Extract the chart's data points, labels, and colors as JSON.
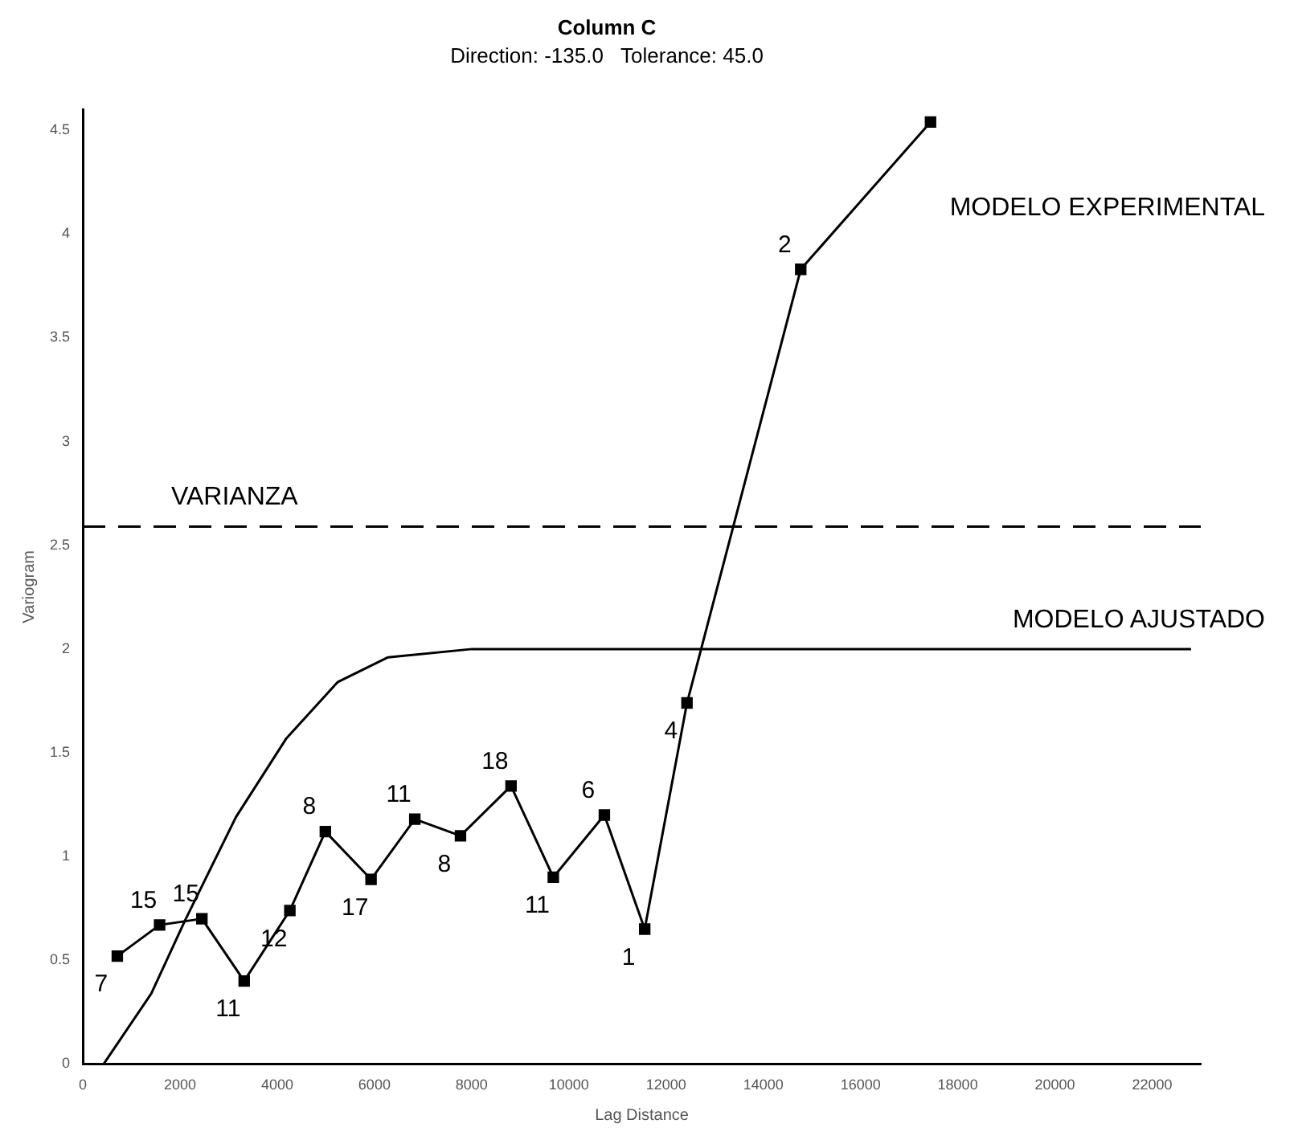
{
  "chart_data": {
    "type": "line",
    "title": "Column C",
    "subtitle": "Direction: -135.0   Tolerance: 45.0",
    "xlabel": "Lag Distance",
    "ylabel": "Variogram",
    "xlim": [
      0,
      23000
    ],
    "xticks": [
      0,
      2000,
      4000,
      6000,
      8000,
      10000,
      12000,
      14000,
      16000,
      18000,
      20000,
      22000
    ],
    "ylim": [
      0,
      4.6
    ],
    "yticks": [
      0,
      0.5,
      1,
      1.5,
      2,
      2.5,
      3,
      3.5,
      4,
      4.5
    ],
    "grid": false,
    "legend": false,
    "series": [
      {
        "name": "MODELO EXPERIMENTAL",
        "color": "#000000",
        "marker": "square",
        "x": [
          710,
          1580,
          2450,
          3320,
          4260,
          4990,
          5930,
          6830,
          7770,
          8810,
          9680,
          10730,
          11560,
          12430,
          14770,
          17440
        ],
        "values": [
          0.52,
          0.67,
          0.7,
          0.4,
          0.74,
          1.12,
          0.89,
          1.18,
          1.1,
          1.34,
          0.9,
          1.2,
          0.65,
          1.74,
          3.83,
          4.54
        ]
      },
      {
        "name": "MODELO AJUSTADO",
        "color": "#000000",
        "marker": "none",
        "x": [
          430,
          1410,
          2100,
          3150,
          4190,
          5240,
          6280,
          8010,
          22800
        ],
        "values": [
          0,
          0.34,
          0.69,
          1.19,
          1.57,
          1.84,
          1.96,
          2.0,
          2.0
        ]
      }
    ],
    "ref_lines": [
      {
        "axis": "y",
        "value": 2.59,
        "label": "VARIANZA",
        "color": "#000000",
        "line_style": "dashed"
      }
    ],
    "annotations": [
      {
        "text": "7",
        "x": 710,
        "y": 0.52
      },
      {
        "text": "15",
        "x": 1580,
        "y": 0.67
      },
      {
        "text": "15",
        "x": 2450,
        "y": 0.7
      },
      {
        "text": "11",
        "x": 3320,
        "y": 0.4
      },
      {
        "text": "12",
        "x": 4260,
        "y": 0.74
      },
      {
        "text": "8",
        "x": 4990,
        "y": 1.12
      },
      {
        "text": "17",
        "x": 5930,
        "y": 0.89
      },
      {
        "text": "11",
        "x": 6830,
        "y": 1.18
      },
      {
        "text": "8",
        "x": 7770,
        "y": 1.1
      },
      {
        "text": "18",
        "x": 8810,
        "y": 1.34
      },
      {
        "text": "11",
        "x": 9680,
        "y": 0.9
      },
      {
        "text": "6",
        "x": 10730,
        "y": 1.2
      },
      {
        "text": "1",
        "x": 11560,
        "y": 0.65
      },
      {
        "text": "4",
        "x": 12430,
        "y": 1.74
      },
      {
        "text": "2",
        "x": 14770,
        "y": 3.83
      }
    ]
  }
}
